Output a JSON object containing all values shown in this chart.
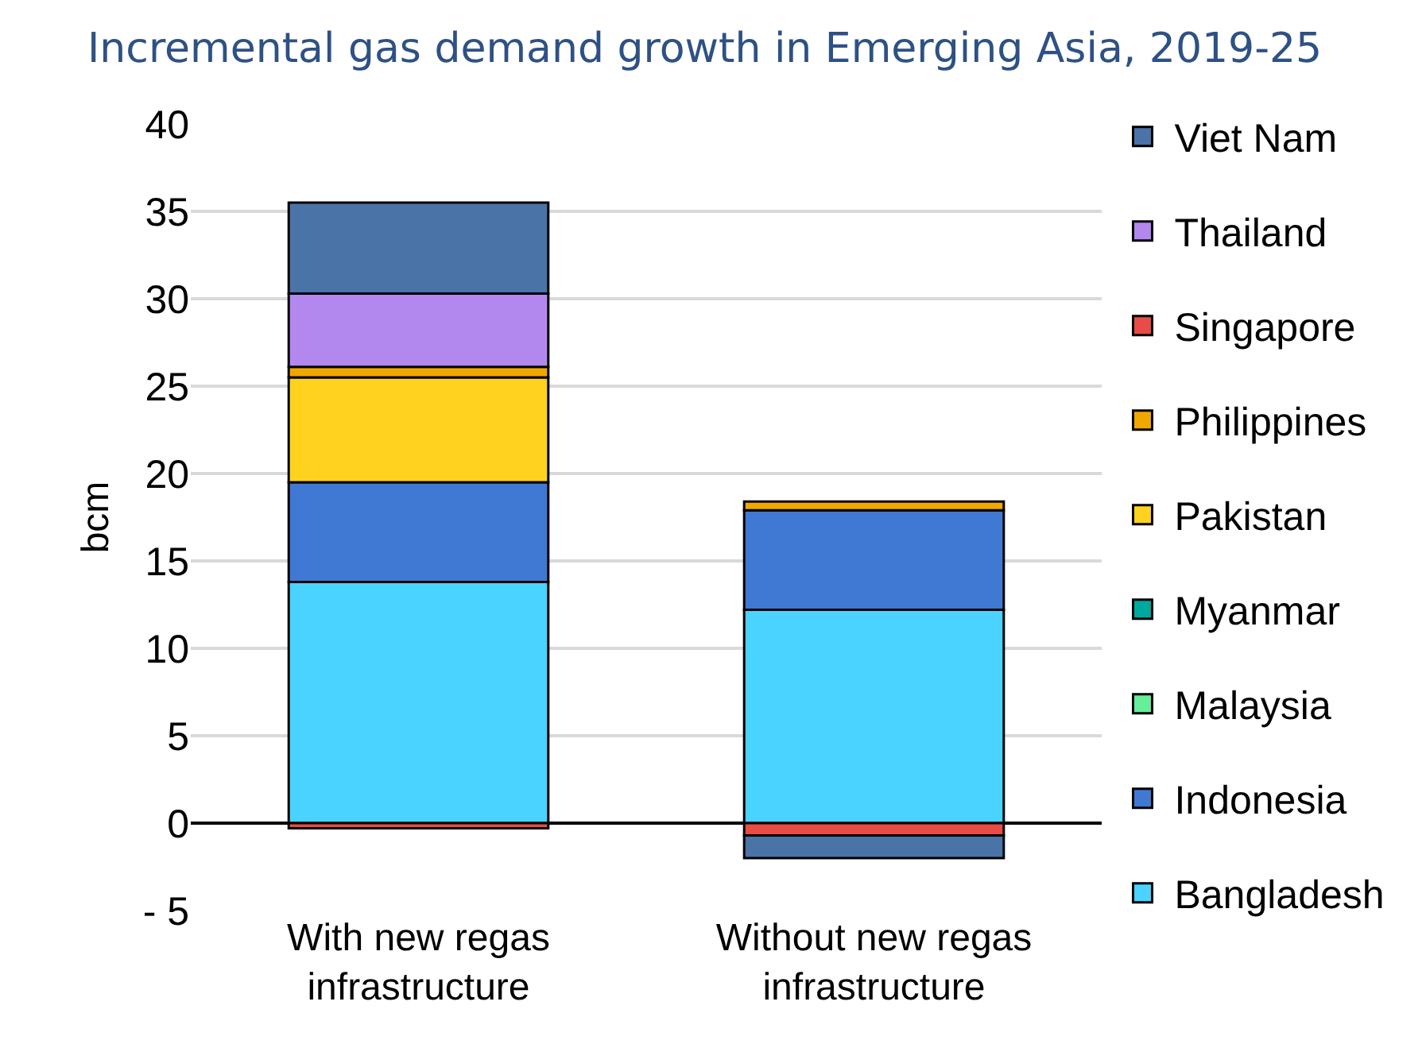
{
  "chart_data": {
    "type": "bar",
    "title": "Incremental gas demand growth in Emerging Asia, 2019-25",
    "ylabel": "bcm",
    "categories": [
      "With new regas infrastructure",
      "Without new regas infrastructure"
    ],
    "stacked": true,
    "series": [
      {
        "name": "Bangladesh",
        "color": "#4ad3ff",
        "values": [
          13.8,
          12.2
        ]
      },
      {
        "name": "Indonesia",
        "color": "#4079d4",
        "values": [
          5.7,
          5.7
        ]
      },
      {
        "name": "Malaysia",
        "color": "#66ee99",
        "values": [
          null,
          null
        ]
      },
      {
        "name": "Myanmar",
        "color": "#00a99d",
        "values": [
          null,
          null
        ]
      },
      {
        "name": "Pakistan",
        "color": "#ffd21f",
        "values": [
          6.0,
          null
        ]
      },
      {
        "name": "Philippines",
        "color": "#f0a800",
        "values": [
          0.6,
          0.5
        ]
      },
      {
        "name": "Singapore",
        "color": "#e84c44",
        "values": [
          -0.3,
          -0.7
        ]
      },
      {
        "name": "Thailand",
        "color": "#b388ee",
        "values": [
          4.2,
          null
        ]
      },
      {
        "name": "Viet Nam",
        "color": "#4a74a8",
        "values": [
          5.2,
          -1.3
        ]
      }
    ],
    "ylim": [
      -5,
      40
    ],
    "yticks": [
      {
        "value": -5,
        "label": "- 5"
      },
      0,
      5,
      10,
      15,
      20,
      25,
      30,
      35,
      40
    ],
    "grid": "y",
    "legend": "right"
  }
}
